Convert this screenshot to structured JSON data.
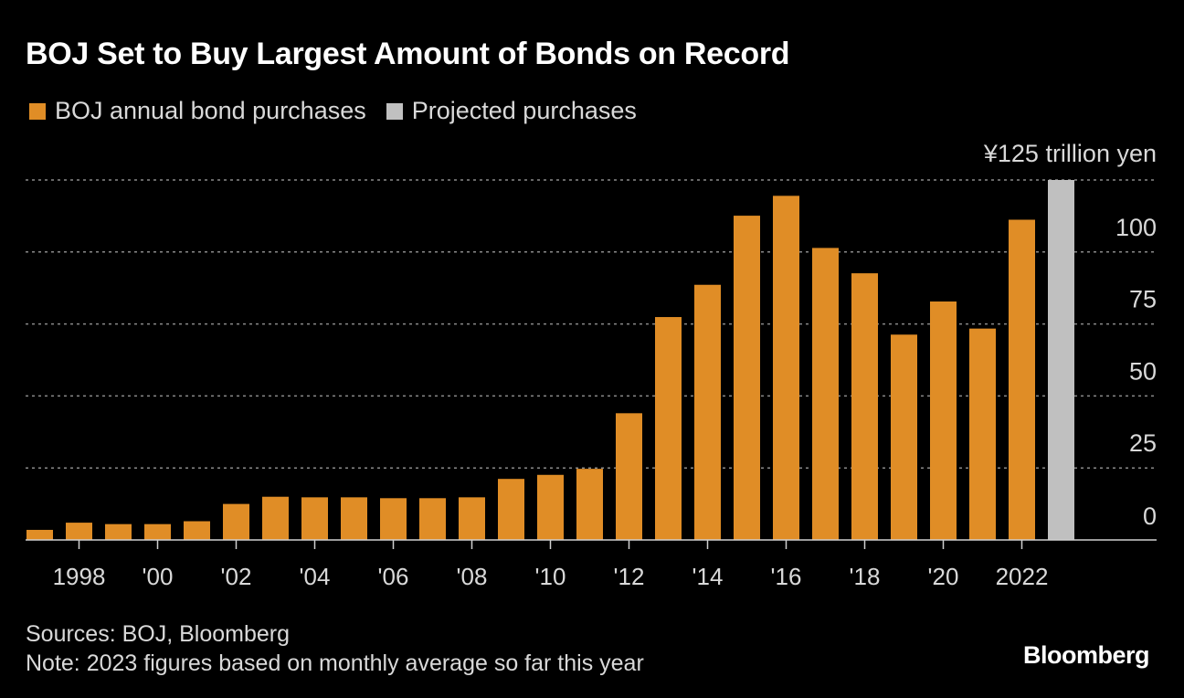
{
  "title": "BOJ Set to Buy Largest Amount of Bonds on Record",
  "legend": {
    "actual_label": "BOJ annual bond purchases",
    "projected_label": "Projected purchases"
  },
  "footer": {
    "sources": "Sources: BOJ, Bloomberg",
    "note": "Note: 2023 figures based on monthly average so far this year"
  },
  "brand": "Bloomberg",
  "colors": {
    "actual": "#E08D26",
    "projected": "#C0C0C0",
    "background": "#000000",
    "gridline": "#8a8a8a",
    "axis_text": "#d9d9d9"
  },
  "chart_data": {
    "type": "bar",
    "title": "BOJ Set to Buy Largest Amount of Bonds on Record",
    "ylabel": "¥125 trillion yen",
    "xlabel": "",
    "ylim": [
      0,
      125
    ],
    "yticks": [
      0,
      25,
      50,
      75,
      100
    ],
    "y_top_label": "¥125 trillion yen",
    "grid": true,
    "legend_position": "top-left",
    "categories": [
      "1997",
      "1998",
      "1999",
      "2000",
      "2001",
      "2002",
      "2003",
      "2004",
      "2005",
      "2006",
      "2007",
      "2008",
      "2009",
      "2010",
      "2011",
      "2012",
      "2013",
      "2014",
      "2015",
      "2016",
      "2017",
      "2018",
      "2019",
      "2020",
      "2021",
      "2022",
      "2023"
    ],
    "x_tick_labels": [
      {
        "year": "1998",
        "label": "1998"
      },
      {
        "year": "2000",
        "label": "'00"
      },
      {
        "year": "2002",
        "label": "'02"
      },
      {
        "year": "2004",
        "label": "'04"
      },
      {
        "year": "2006",
        "label": "'06"
      },
      {
        "year": "2008",
        "label": "'08"
      },
      {
        "year": "2010",
        "label": "'10"
      },
      {
        "year": "2012",
        "label": "'12"
      },
      {
        "year": "2014",
        "label": "'14"
      },
      {
        "year": "2016",
        "label": "'16"
      },
      {
        "year": "2018",
        "label": "'18"
      },
      {
        "year": "2020",
        "label": "'20"
      },
      {
        "year": "2022",
        "label": "2022"
      }
    ],
    "series": [
      {
        "name": "BOJ annual bond purchases",
        "color": "#E08D26",
        "values": [
          3.5,
          6,
          5.5,
          5.5,
          6.5,
          12.5,
          15,
          14.8,
          14.8,
          14.5,
          14.5,
          14.8,
          21.2,
          22.6,
          24.7,
          44,
          77.4,
          88.6,
          112.6,
          119.5,
          101.4,
          92.6,
          71.3,
          82.8,
          73.4,
          111.2,
          null
        ]
      },
      {
        "name": "Projected purchases",
        "color": "#C0C0C0",
        "values": [
          null,
          null,
          null,
          null,
          null,
          null,
          null,
          null,
          null,
          null,
          null,
          null,
          null,
          null,
          null,
          null,
          null,
          null,
          null,
          null,
          null,
          null,
          null,
          null,
          null,
          null,
          125
        ]
      }
    ]
  }
}
